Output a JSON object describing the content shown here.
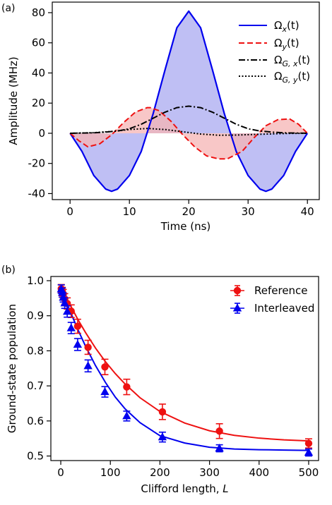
{
  "chart_data": [
    {
      "panel_label": "(a)",
      "type": "line",
      "xlabel": "Time (ns)",
      "ylabel": "Amplitude (MHz)",
      "xlim": [
        -3,
        42
      ],
      "ylim": [
        -44,
        87
      ],
      "xticks": [
        0,
        10,
        20,
        30,
        40
      ],
      "yticks": [
        -40,
        -20,
        0,
        20,
        40,
        60,
        80
      ],
      "legend_position": "top-right",
      "series": [
        {
          "name": "Ω_x(t)",
          "name_main": "Ω",
          "name_sub": "x",
          "name_suffix": "(t)",
          "style": "solid",
          "color": "#0000ee",
          "fill": "#aaaaf0",
          "x": [
            0,
            2,
            4,
            6,
            7,
            8,
            10,
            12,
            14,
            16,
            18,
            20,
            22,
            24,
            26,
            28,
            30,
            32,
            33,
            34,
            36,
            38,
            40
          ],
          "y": [
            0,
            -12,
            -28,
            -37,
            -38.5,
            -37,
            -28,
            -12,
            13,
            42,
            70,
            81,
            70,
            42,
            13,
            -12,
            -28,
            -37,
            -38.5,
            -37,
            -28,
            -12,
            0
          ]
        },
        {
          "name": "Ω_y(t)",
          "name_main": "Ω",
          "name_sub": "y",
          "name_suffix": "(t)",
          "style": "dashed",
          "color": "#ee1111",
          "fill": "#f6b4b4",
          "x": [
            0,
            1.5,
            3,
            5,
            7,
            9,
            11,
            13,
            13.5,
            15,
            17,
            19,
            21,
            23,
            25,
            26.5,
            27,
            29,
            31,
            33,
            35,
            37,
            38.5,
            40
          ],
          "y": [
            0,
            -5,
            -9,
            -7,
            -1,
            7,
            14,
            17,
            17,
            15,
            8,
            -1,
            -9,
            -15,
            -17,
            -17,
            -16,
            -12,
            -3,
            5,
            9,
            9.5,
            6,
            0
          ]
        },
        {
          "name": "Ω_G,x(t)",
          "name_main": "Ω",
          "name_sub": "G, x",
          "name_suffix": "(t)",
          "style": "dashdot",
          "color": "#000000",
          "x": [
            0,
            4,
            6,
            8,
            10,
            12,
            14,
            16,
            18,
            20,
            22,
            24,
            26,
            28,
            30,
            32,
            34,
            36,
            40
          ],
          "y": [
            0,
            0.3,
            0.8,
            1.5,
            3,
            6,
            10,
            14,
            17,
            18,
            17,
            14,
            10,
            6,
            3,
            1.5,
            0.8,
            0.3,
            0
          ]
        },
        {
          "name": "Ω_G,y(t)",
          "name_main": "Ω",
          "name_sub": "G, y",
          "name_suffix": "(t)",
          "style": "dotted",
          "color": "#000000",
          "x": [
            0,
            4,
            7,
            10,
            13,
            16,
            19,
            22,
            25,
            28,
            31,
            34,
            37,
            40
          ],
          "y": [
            0,
            0.4,
            1.2,
            2.5,
            3.2,
            2.5,
            1,
            -0.5,
            -1.3,
            -1.2,
            -0.8,
            -0.4,
            -0.1,
            0
          ]
        }
      ]
    },
    {
      "panel_label": "(b)",
      "type": "scatter",
      "xlabel": "Clifford length, ",
      "xlabel_italic": "L",
      "ylabel": "Ground-state population",
      "xlim": [
        -20,
        520
      ],
      "ylim": [
        0.487,
        1.012
      ],
      "xticks": [
        0,
        100,
        200,
        300,
        400,
        500
      ],
      "yticks": [
        0.5,
        0.6,
        0.7,
        0.8,
        0.9,
        1.0
      ],
      "ytick_labels": [
        "0.5",
        "0.6",
        "0.7",
        "0.8",
        "0.9",
        "1.0"
      ],
      "legend_position": "top-right",
      "series": [
        {
          "name": "Reference",
          "marker": "circle",
          "color": "#ee1111",
          "x": [
            1,
            3,
            5,
            8,
            13,
            21,
            34,
            55,
            89,
            133,
            205,
            320,
            500
          ],
          "y": [
            0.977,
            0.969,
            0.962,
            0.948,
            0.935,
            0.913,
            0.87,
            0.81,
            0.754,
            0.697,
            0.626,
            0.571,
            0.536
          ],
          "err": [
            0.012,
            0.012,
            0.013,
            0.015,
            0.016,
            0.018,
            0.02,
            0.02,
            0.022,
            0.022,
            0.022,
            0.021,
            0.013
          ],
          "fit_x": [
            0,
            10,
            20,
            35,
            50,
            70,
            90,
            110,
            130,
            160,
            200,
            250,
            300,
            350,
            400,
            450,
            500
          ],
          "fit_y": [
            0.985,
            0.955,
            0.928,
            0.888,
            0.852,
            0.808,
            0.769,
            0.735,
            0.705,
            0.666,
            0.627,
            0.594,
            0.572,
            0.559,
            0.551,
            0.546,
            0.543
          ]
        },
        {
          "name": "Interleaved",
          "marker": "triangle",
          "color": "#0000ee",
          "x": [
            1,
            3,
            5,
            8,
            13,
            21,
            34,
            55,
            89,
            133,
            205,
            320,
            500
          ],
          "y": [
            0.976,
            0.966,
            0.952,
            0.936,
            0.912,
            0.865,
            0.818,
            0.757,
            0.683,
            0.614,
            0.554,
            0.522,
            0.51
          ],
          "err": [
            0.012,
            0.013,
            0.013,
            0.015,
            0.016,
            0.016,
            0.017,
            0.017,
            0.015,
            0.014,
            0.014,
            0.01,
            0.01
          ],
          "fit_x": [
            0,
            10,
            20,
            35,
            50,
            70,
            90,
            110,
            130,
            160,
            200,
            250,
            300,
            350,
            400,
            450,
            500
          ],
          "fit_y": [
            0.98,
            0.944,
            0.909,
            0.859,
            0.813,
            0.758,
            0.71,
            0.668,
            0.634,
            0.595,
            0.558,
            0.537,
            0.525,
            0.52,
            0.518,
            0.517,
            0.516
          ]
        }
      ]
    }
  ]
}
